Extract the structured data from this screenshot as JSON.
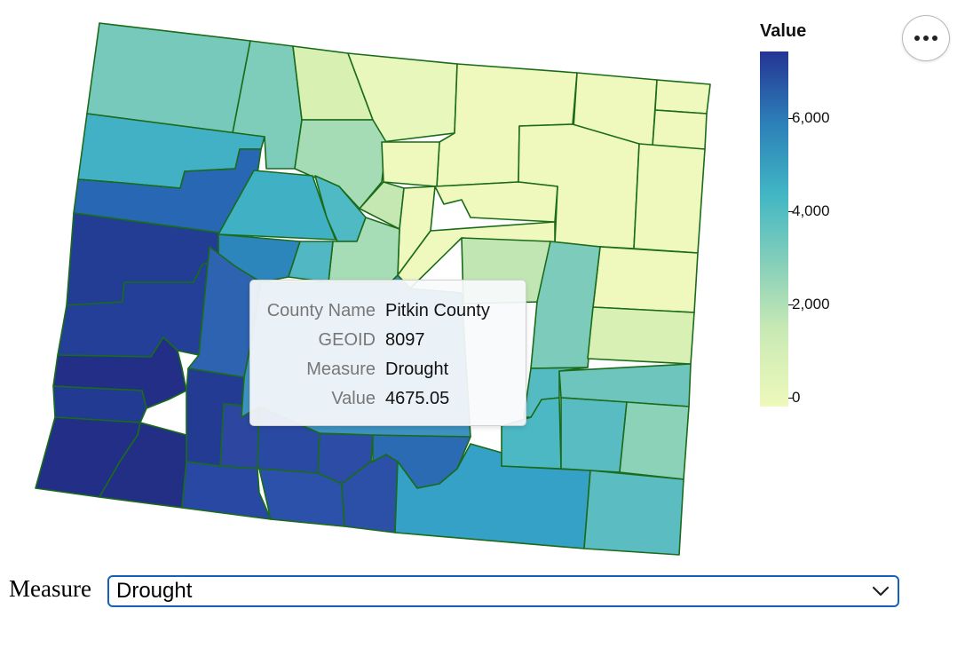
{
  "legend": {
    "title": "Value",
    "min": 0,
    "max": 7400,
    "ticks": [
      {
        "value": 6000,
        "label": "6,000"
      },
      {
        "value": 4000,
        "label": "4,000"
      },
      {
        "value": 2000,
        "label": "2,000"
      },
      {
        "value": 0,
        "label": "0"
      }
    ],
    "colors": [
      "#eef9bb",
      "#c8e9b4",
      "#7fcdbb",
      "#41b6c4",
      "#2c7fb8",
      "#253494"
    ]
  },
  "tooltip": {
    "rows": [
      {
        "key": "County Name",
        "value": "Pitkin County"
      },
      {
        "key": "GEOID",
        "value": "8097"
      },
      {
        "key": "Measure",
        "value": "Drought"
      },
      {
        "key": "Value",
        "value": "4675.05"
      }
    ]
  },
  "controls": {
    "measure_label": "Measure",
    "measure_selected": "Drought"
  },
  "icons": {
    "more": "more-horizontal-icon",
    "select": "chevron-down-icon"
  },
  "map": {
    "county_border_color": "#1a6b1a"
  }
}
